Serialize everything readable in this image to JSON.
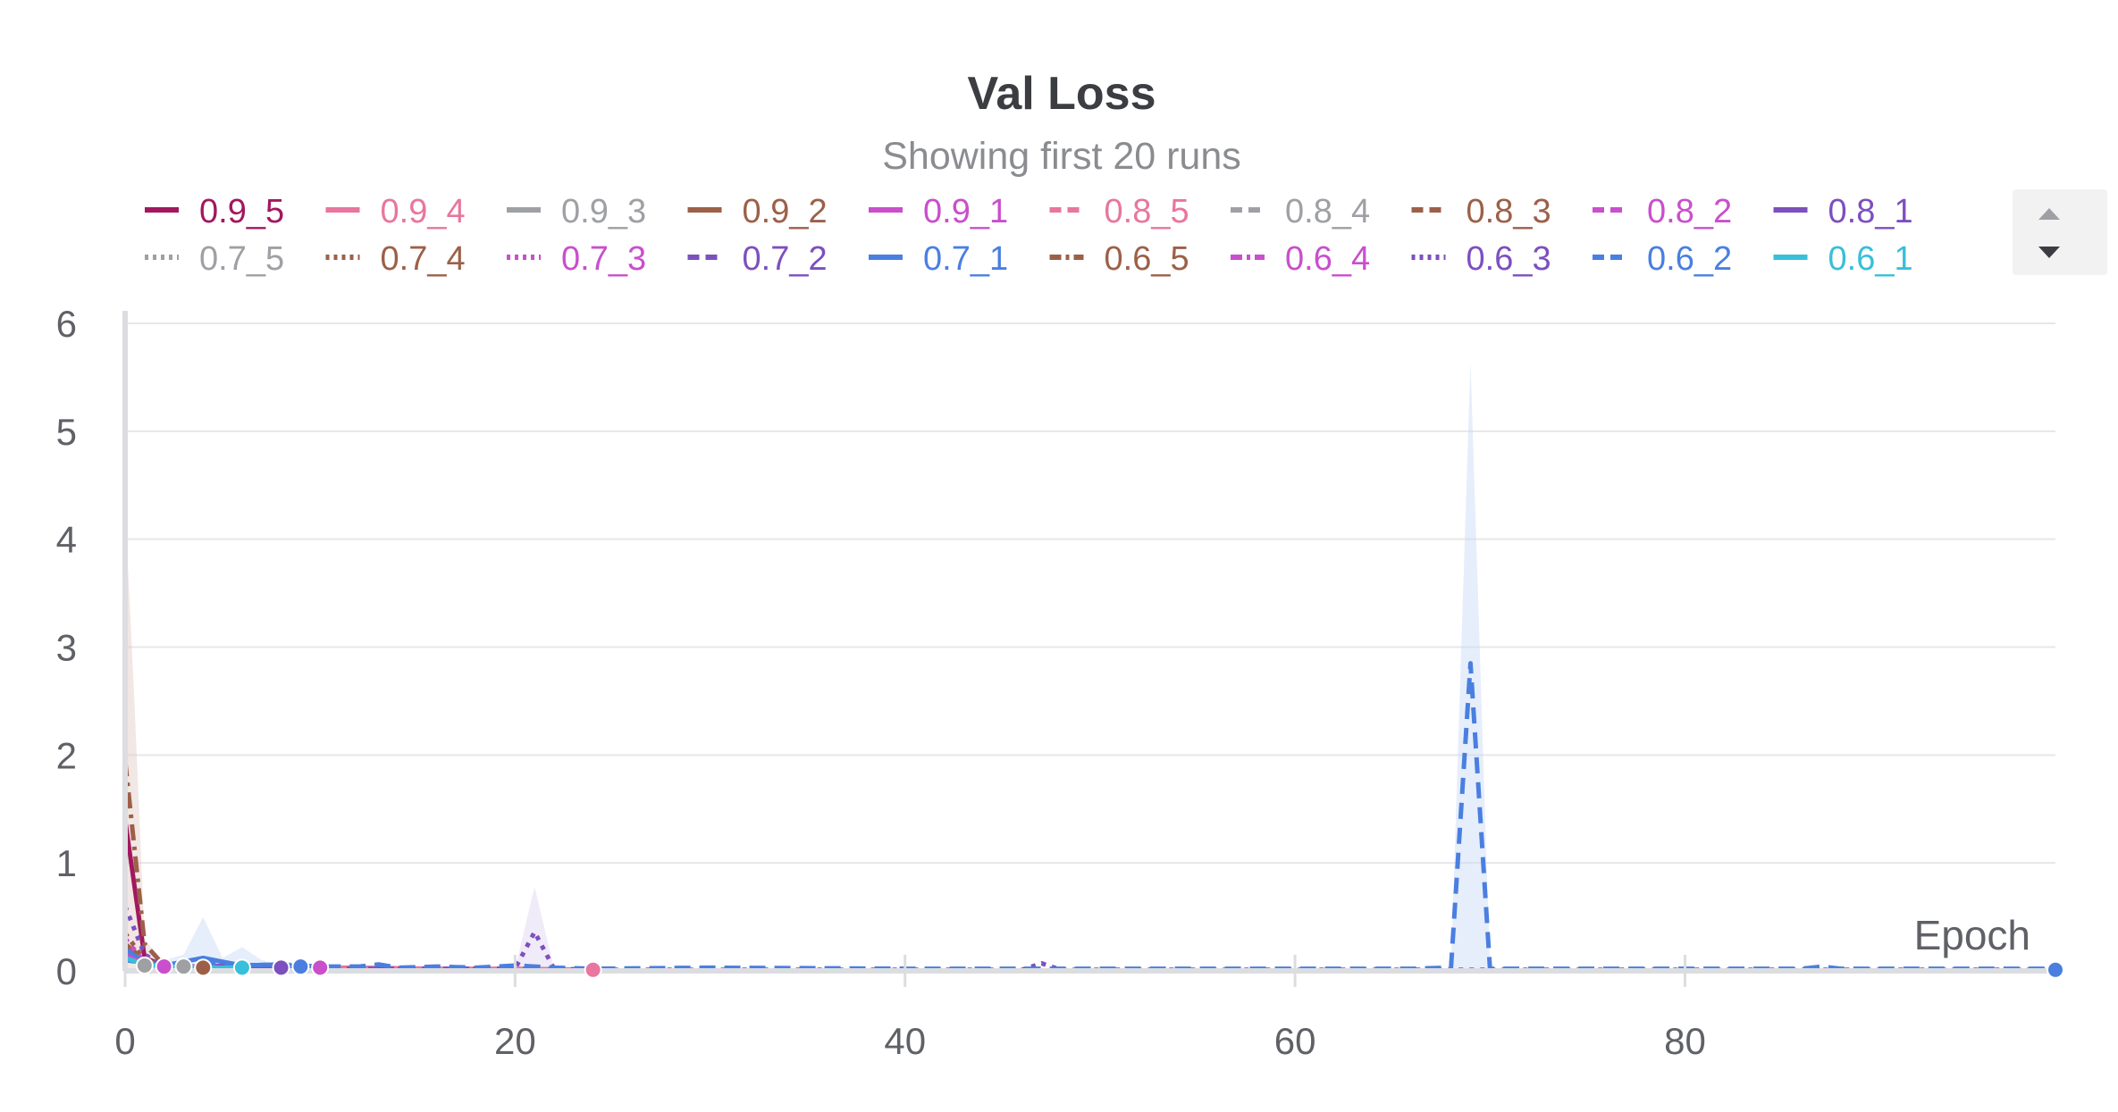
{
  "chart_data": {
    "type": "line",
    "title": "Val Loss",
    "subtitle": "Showing first 20 runs",
    "xlabel": "Epoch",
    "ylabel": "",
    "xlim": [
      0,
      99
    ],
    "ylim": [
      0,
      6
    ],
    "xticks": [
      0,
      20,
      40,
      60,
      80
    ],
    "yticks": [
      0,
      1,
      2,
      3,
      4,
      5,
      6
    ],
    "grid": true,
    "legend_position": "top",
    "series": [
      {
        "name": "0.9_5",
        "color": "#a2185f",
        "dash": "solid",
        "x": [
          0,
          1,
          2,
          3
        ],
        "y": [
          1.4,
          0.12,
          0.05,
          0.04
        ]
      },
      {
        "name": "0.9_4",
        "color": "#e8769e",
        "dash": "solid",
        "x": [
          0,
          1,
          2,
          4,
          8,
          12,
          16,
          20,
          24
        ],
        "y": [
          0.25,
          0.08,
          0.05,
          0.04,
          0.03,
          0.03,
          0.02,
          0.02,
          0.01
        ]
      },
      {
        "name": "0.9_3",
        "color": "#9ea0a4",
        "dash": "solid",
        "x": [
          0,
          1,
          2,
          3
        ],
        "y": [
          0.18,
          0.08,
          0.05,
          0.04
        ]
      },
      {
        "name": "0.9_2",
        "color": "#9c6048",
        "dash": "solid",
        "x": [
          0,
          1,
          2,
          3,
          4
        ],
        "y": [
          0.2,
          0.08,
          0.05,
          0.04,
          0.03
        ]
      },
      {
        "name": "0.9_1",
        "color": "#c94fcc",
        "dash": "solid",
        "x": [
          0,
          1,
          2,
          4,
          6,
          8,
          10
        ],
        "y": [
          0.15,
          0.07,
          0.04,
          0.04,
          0.06,
          0.03,
          0.03
        ]
      },
      {
        "name": "0.8_5",
        "color": "#e8769e",
        "dash": "dashed",
        "x": [
          0,
          1,
          2,
          3
        ],
        "y": [
          0.2,
          0.08,
          0.05,
          0.04
        ]
      },
      {
        "name": "0.8_4",
        "color": "#9ea0a4",
        "dash": "dashed",
        "x": [
          0,
          1,
          2,
          3
        ],
        "y": [
          0.15,
          0.06,
          0.04,
          0.03
        ]
      },
      {
        "name": "0.8_3",
        "color": "#9c6048",
        "dash": "dashed",
        "x": [
          0,
          1,
          2,
          3,
          4
        ],
        "y": [
          0.25,
          0.1,
          0.06,
          0.04,
          0.03
        ]
      },
      {
        "name": "0.8_2",
        "color": "#c94fcc",
        "dash": "dashed",
        "x": [
          0,
          1,
          2,
          3
        ],
        "y": [
          0.18,
          0.07,
          0.04,
          0.03
        ]
      },
      {
        "name": "0.8_1",
        "color": "#7d4fbf",
        "dash": "solid",
        "x": [
          0,
          1,
          2,
          4,
          6,
          8
        ],
        "y": [
          0.12,
          0.06,
          0.04,
          0.03,
          0.06,
          0.03
        ]
      },
      {
        "name": "0.7_5",
        "color": "#9ea0a4",
        "dash": "dotted",
        "x": [
          0,
          1,
          2,
          3
        ],
        "y": [
          0.3,
          0.08,
          0.05,
          0.04
        ]
      },
      {
        "name": "0.7_4",
        "color": "#9c6048",
        "dash": "dotted",
        "x": [
          0,
          1,
          2,
          3
        ],
        "y": [
          0.35,
          0.1,
          0.06,
          0.04
        ]
      },
      {
        "name": "0.7_3",
        "color": "#c94fcc",
        "dash": "dotted",
        "x": [
          0,
          1,
          2,
          3
        ],
        "y": [
          0.3,
          0.08,
          0.05,
          0.04
        ]
      },
      {
        "name": "0.7_2",
        "color": "#7d4fbf",
        "dash": "dashed",
        "x": [
          0,
          1,
          2,
          4,
          8,
          12,
          16,
          20,
          24
        ],
        "y": [
          0.15,
          0.06,
          0.04,
          0.03,
          0.02,
          0.02,
          0.02,
          0.02,
          0.01
        ]
      },
      {
        "name": "0.7_1",
        "color": "#4a7fe0",
        "dash": "solid",
        "x": [
          0,
          1,
          2,
          4,
          6,
          8,
          9
        ],
        "y": [
          0.2,
          0.08,
          0.05,
          0.12,
          0.05,
          0.06,
          0.04
        ]
      },
      {
        "name": "0.6_5",
        "color": "#9c6048",
        "dash": "dashdot",
        "x": [
          0,
          0.5,
          1,
          2,
          3,
          4
        ],
        "y": [
          1.95,
          1.1,
          0.25,
          0.05,
          0.03,
          0.02
        ]
      },
      {
        "name": "0.6_4",
        "color": "#c94fcc",
        "dash": "dashdot",
        "x": [
          0,
          1,
          2,
          3
        ],
        "y": [
          0.15,
          0.06,
          0.04,
          0.03
        ]
      },
      {
        "name": "0.6_3",
        "color": "#7d4fbf",
        "dash": "dotted",
        "x": [
          0,
          1,
          2,
          4,
          8,
          12,
          16,
          20,
          21,
          22,
          24,
          30,
          40,
          46,
          47,
          48,
          50,
          60,
          70,
          80,
          90,
          99
        ],
        "y": [
          0.6,
          0.15,
          0.05,
          0.03,
          0.02,
          0.02,
          0.02,
          0.02,
          0.36,
          0.02,
          0.01,
          0.01,
          0.01,
          0.01,
          0.07,
          0.01,
          0.01,
          0.01,
          0.01,
          0.01,
          0.01,
          0.01
        ]
      },
      {
        "name": "0.6_2",
        "color": "#4a7fe0",
        "dash": "dashed",
        "x": [
          0,
          2,
          4,
          6,
          8,
          10,
          12,
          13,
          14,
          16,
          18,
          20,
          22,
          24,
          30,
          40,
          50,
          60,
          66,
          68,
          69,
          70,
          72,
          80,
          86,
          87,
          88,
          90,
          99
        ],
        "y": [
          0.1,
          0.05,
          0.08,
          0.05,
          0.06,
          0.04,
          0.04,
          0.06,
          0.03,
          0.04,
          0.03,
          0.05,
          0.03,
          0.02,
          0.03,
          0.02,
          0.02,
          0.02,
          0.02,
          0.03,
          2.85,
          0.02,
          0.02,
          0.02,
          0.02,
          0.04,
          0.02,
          0.02,
          0.02
        ]
      },
      {
        "name": "0.6_1",
        "color": "#38bfd9",
        "dash": "solid",
        "x": [
          0,
          1,
          2,
          4,
          6
        ],
        "y": [
          0.12,
          0.06,
          0.04,
          0.03,
          0.03
        ]
      }
    ],
    "shaded_bands": [
      {
        "color": "#e1c9c5",
        "x": [
          0,
          0.5,
          1,
          2
        ],
        "upper": [
          4.3,
          2.4,
          0.3,
          0.05
        ]
      },
      {
        "color": "#c8d9f7",
        "x": [
          2,
          3,
          4,
          5,
          6,
          7,
          8
        ],
        "upper": [
          0.1,
          0.15,
          0.5,
          0.12,
          0.22,
          0.1,
          0.05
        ]
      },
      {
        "color": "#ddd2f0",
        "x": [
          20,
          21,
          22
        ],
        "upper": [
          0.02,
          0.78,
          0.02
        ]
      },
      {
        "color": "#c8d9f7",
        "x": [
          68,
          69,
          70
        ],
        "upper": [
          0.03,
          5.65,
          0.03
        ]
      }
    ],
    "end_markers": [
      {
        "x": 1,
        "y": 0.05,
        "color": "#9ea0a4"
      },
      {
        "x": 2,
        "y": 0.04,
        "color": "#c94fcc"
      },
      {
        "x": 3,
        "y": 0.04,
        "color": "#9ea0a4"
      },
      {
        "x": 4,
        "y": 0.03,
        "color": "#9c6048"
      },
      {
        "x": 6,
        "y": 0.03,
        "color": "#38bfd9"
      },
      {
        "x": 8,
        "y": 0.03,
        "color": "#7d4fbf"
      },
      {
        "x": 9,
        "y": 0.04,
        "color": "#4a7fe0"
      },
      {
        "x": 10,
        "y": 0.03,
        "color": "#c94fcc"
      },
      {
        "x": 24,
        "y": 0.01,
        "color": "#e8769e"
      },
      {
        "x": 99,
        "y": 0.01,
        "color": "#4a7fe0"
      }
    ]
  },
  "legend_scroll": {
    "up_icon": "scroll-up-triangle-icon",
    "down_icon": "scroll-down-triangle-icon"
  }
}
